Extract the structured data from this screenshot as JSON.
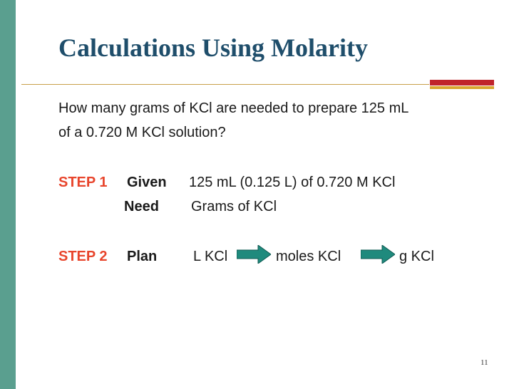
{
  "slide": {
    "title": "Calculations Using Molarity",
    "question_line1": "How many grams of KCl are needed to prepare 125 mL",
    "question_line2": "of a 0.720 M KCl solution?",
    "step1": {
      "label": "STEP 1",
      "given_label": "Given",
      "given_value": "125 mL (0.125 L)  of 0.720 M KCl",
      "need_label": "Need",
      "need_value": "Grams of KCl"
    },
    "step2": {
      "label": "STEP 2",
      "plan_label": "Plan",
      "plan_items": [
        "L KCl",
        "moles KCl",
        "g KCl"
      ]
    },
    "page_number": "11"
  },
  "colors": {
    "title": "#1f4e6b",
    "step": "#e8452c",
    "green_bar": "#5a9f8f",
    "accent_red": "#c0242b",
    "accent_gold": "#d9a630",
    "arrow_fill": "#1f8a7d"
  },
  "icons": [
    "right-arrow-icon"
  ]
}
